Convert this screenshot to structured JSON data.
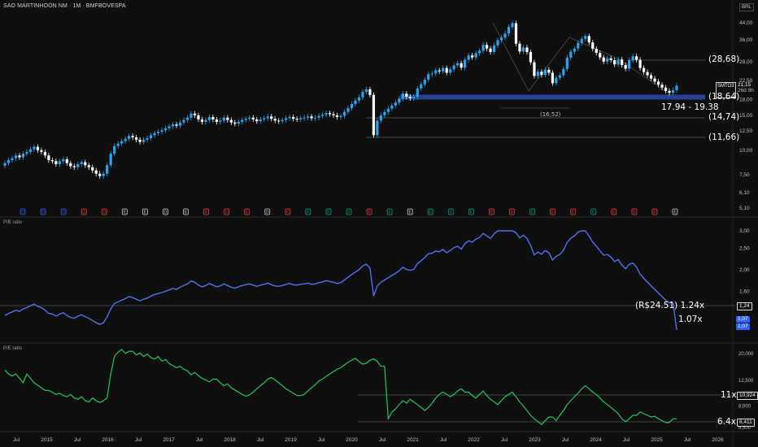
{
  "header": {
    "title": "SAO MARTINHOON NM · 1M · BMFBOVESPA",
    "currency": "BRL"
  },
  "symbol_tag": {
    "ticker": "SMTO3",
    "price": "21,15",
    "countdown": "26d 9h"
  },
  "panels": {
    "pb_label": "P/B ratio",
    "pe_label": "P/E ratio"
  },
  "annotations": {
    "level_2868": "(28,68)",
    "level_1864": "(18,64)",
    "level_1474": "(14,74)",
    "level_1166": "(11,66)",
    "level_1652": "(16,52)",
    "zone_range": "17.94 - 19.38",
    "pb_target": "(R$24.51) 1.24x",
    "pb_current": "1.07x",
    "pe_target": "11x",
    "pe_current": "6.4x"
  },
  "badges": {
    "pb_1": "1,24",
    "pb_2a": "1,07",
    "pb_2b": "1,07",
    "pe_1": "10,924",
    "pe_2": "6,411"
  },
  "price_axis": [
    "44,00",
    "36,00",
    "28,00",
    "22,50",
    "18,00",
    "15,00",
    "12,50",
    "10,00",
    "7,50",
    "6,10",
    "5,10"
  ],
  "pb_axis": [
    "3,00",
    "2,50",
    "2,00",
    "1,60",
    "1,20"
  ],
  "pe_axis": [
    "20,000",
    "12,500",
    "8,000",
    "5,500"
  ],
  "time_axis": [
    "Jul",
    "2015",
    "Jul",
    "2016",
    "Jul",
    "2017",
    "Jul",
    "2018",
    "Jul",
    "2019",
    "Jul",
    "2020",
    "Jul",
    "2021",
    "Jul",
    "2022",
    "Jul",
    "2023",
    "Jul",
    "2024",
    "Jul",
    "2025",
    "Jul",
    "2026"
  ],
  "event_markers": [
    {
      "letter": "D",
      "color": "#2962ff"
    },
    {
      "letter": "D",
      "color": "#2962ff"
    },
    {
      "letter": "D",
      "color": "#2962ff"
    },
    {
      "letter": "D",
      "color": "#f23645"
    },
    {
      "letter": "D",
      "color": "#f23645"
    },
    {
      "letter": "E",
      "color": "#cccccc"
    },
    {
      "letter": "E",
      "color": "#cccccc"
    },
    {
      "letter": "D",
      "color": "#cccccc"
    },
    {
      "letter": "E",
      "color": "#cccccc"
    },
    {
      "letter": "E",
      "color": "#f23645"
    },
    {
      "letter": "E",
      "color": "#f23645"
    },
    {
      "letter": "E",
      "color": "#f23645"
    },
    {
      "letter": "D",
      "color": "#cccccc"
    },
    {
      "letter": "E",
      "color": "#f23645"
    },
    {
      "letter": "E",
      "color": "#089981"
    },
    {
      "letter": "E",
      "color": "#089981"
    },
    {
      "letter": "E",
      "color": "#089981"
    },
    {
      "letter": "E",
      "color": "#f23645"
    },
    {
      "letter": "E",
      "color": "#089981"
    },
    {
      "letter": "E",
      "color": "#cccccc"
    },
    {
      "letter": "E",
      "color": "#089981"
    },
    {
      "letter": "E",
      "color": "#089981"
    },
    {
      "letter": "E",
      "color": "#089981"
    },
    {
      "letter": "E",
      "color": "#f23645"
    },
    {
      "letter": "E",
      "color": "#f23645"
    },
    {
      "letter": "E",
      "color": "#089981"
    },
    {
      "letter": "E",
      "color": "#f23645"
    },
    {
      "letter": "E",
      "color": "#f23645"
    },
    {
      "letter": "E",
      "color": "#089981"
    },
    {
      "letter": "E",
      "color": "#f23645"
    },
    {
      "letter": "E",
      "color": "#f23645"
    },
    {
      "letter": "E",
      "color": "#f23645"
    },
    {
      "letter": "E",
      "color": "#cccccc"
    }
  ],
  "colors": {
    "up": "#2aa3f0",
    "down": "#ffffff",
    "pb": "#4f6ff0",
    "pe": "#22c55e",
    "zone": "#27418f"
  },
  "chart_data": [
    {
      "type": "candlestick",
      "title": "SAO MARTINHOON NM · 1M · BMFBOVESPA",
      "ylabel": "BRL",
      "yscale": "log",
      "ylim": [
        5.1,
        44
      ],
      "monthly_close": [
        8.6,
        8.9,
        9.1,
        9.4,
        9.2,
        9.6,
        9.8,
        10.1,
        10.4,
        10.0,
        9.8,
        9.4,
        8.9,
        8.8,
        8.5,
        8.8,
        9.0,
        8.6,
        8.3,
        8.2,
        8.5,
        8.7,
        8.4,
        8.2,
        7.9,
        7.6,
        7.4,
        7.6,
        8.4,
        9.6,
        10.5,
        10.8,
        11.1,
        11.4,
        11.8,
        11.6,
        11.3,
        11.0,
        11.3,
        11.5,
        11.9,
        12.2,
        12.4,
        12.6,
        12.9,
        13.2,
        13.5,
        13.3,
        13.8,
        14.2,
        14.6,
        15.3,
        15.0,
        14.3,
        13.9,
        14.2,
        14.7,
        14.3,
        13.9,
        14.1,
        14.6,
        14.2,
        13.8,
        13.6,
        13.9,
        14.2,
        14.4,
        14.6,
        14.3,
        14.0,
        14.3,
        14.5,
        14.8,
        14.4,
        14.1,
        14.0,
        14.2,
        14.5,
        14.7,
        14.4,
        14.3,
        14.5,
        14.6,
        14.8,
        14.5,
        14.6,
        14.9,
        15.1,
        15.4,
        15.2,
        15.0,
        14.7,
        14.9,
        15.6,
        16.3,
        17.1,
        17.8,
        18.5,
        19.7,
        20.3,
        19.0,
        11.9,
        14.1,
        15.0,
        15.6,
        16.2,
        16.8,
        17.4,
        18.2,
        19.3,
        18.6,
        18.3,
        18.6,
        20.5,
        21.5,
        22.7,
        24.2,
        24.4,
        25.3,
        25.0,
        26.0,
        24.6,
        25.6,
        26.8,
        27.5,
        26.1,
        28.6,
        30.1,
        29.4,
        30.9,
        31.8,
        34.0,
        32.6,
        31.3,
        33.8,
        35.9,
        37.0,
        38.8,
        41.9,
        43.8,
        34.5,
        31.5,
        33.0,
        31.3,
        27.8,
        23.7,
        24.9,
        24.0,
        25.5,
        24.6,
        21.8,
        23.2,
        23.9,
        25.7,
        29.3,
        31.4,
        32.6,
        34.8,
        36.5,
        37.7,
        35.0,
        32.5,
        31.0,
        29.4,
        28.0,
        29.1,
        28.5,
        27.1,
        28.7,
        26.9,
        25.8,
        28.5,
        29.8,
        28.6,
        26.0,
        24.8,
        23.9,
        23.0,
        22.2,
        21.4,
        20.7,
        19.9,
        19.5,
        20.1,
        21.15
      ]
    },
    {
      "type": "line",
      "ylabel": "P/B ratio",
      "ylim": [
        1.07,
        3.0
      ],
      "y_ticks": [
        3.0,
        2.5,
        2.0,
        1.6,
        1.2
      ],
      "current": 1.07,
      "target": 1.24,
      "target_price": 24.51
    },
    {
      "type": "line",
      "ylabel": "P/E ratio",
      "ylim": [
        5.5,
        20.0
      ],
      "y_ticks": [
        20.0,
        12.5,
        8.0,
        5.5
      ],
      "current": 6.411,
      "target": 10.924
    }
  ]
}
